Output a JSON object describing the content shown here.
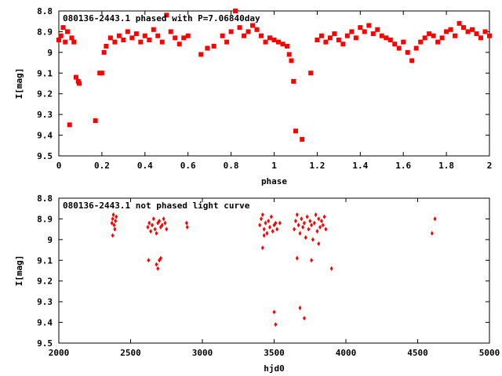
{
  "colors": {
    "points": "#ff0000",
    "axes": "#000000",
    "background": "#ffffff"
  },
  "chart_data": [
    {
      "type": "scatter",
      "title": "080136-2443.1 phased with P=7.06840day",
      "xlabel": "phase",
      "ylabel": "I[mag]",
      "xlim": [
        0,
        2
      ],
      "ylim": [
        8.8,
        9.5
      ],
      "y_inverted": true,
      "x_ticks": [
        0,
        0.2,
        0.4,
        0.6,
        0.8,
        1,
        1.2,
        1.4,
        1.6,
        1.8,
        2
      ],
      "x_tick_labels": [
        "0",
        "0.2",
        "0.4",
        "0.6",
        "0.8",
        "1",
        "1.2",
        "1.4",
        "1.6",
        "1.8",
        "2"
      ],
      "y_ticks": [
        8.8,
        8.9,
        9.0,
        9.1,
        9.2,
        9.3,
        9.4,
        9.5
      ],
      "y_tick_labels": [
        "8.8",
        "8.9",
        "9",
        "9.1",
        "9.2",
        "9.3",
        "9.4",
        "9.5"
      ],
      "grid": false,
      "marker": "square",
      "series": [
        {
          "x": [
            0.0,
            0.01,
            0.02,
            0.03,
            0.04,
            0.05,
            0.06,
            0.07,
            0.08,
            0.09,
            0.095,
            0.17,
            0.19,
            0.2,
            0.21,
            0.22,
            0.24,
            0.26,
            0.28,
            0.3,
            0.32,
            0.34,
            0.36,
            0.38,
            0.4,
            0.42,
            0.44,
            0.46,
            0.48,
            0.5,
            0.52,
            0.54,
            0.56,
            0.58,
            0.6,
            0.66,
            0.69,
            0.72,
            0.76,
            0.78,
            0.8,
            0.82,
            0.84,
            0.86,
            0.88,
            0.9,
            0.92,
            0.94,
            0.96,
            0.98,
            1.0,
            1.02,
            1.04,
            1.06,
            1.07,
            1.08,
            1.09,
            1.1,
            1.13,
            1.17,
            1.2,
            1.22,
            1.24,
            1.26,
            1.28,
            1.3,
            1.32,
            1.34,
            1.36,
            1.38,
            1.4,
            1.42,
            1.44,
            1.46,
            1.48,
            1.5,
            1.52,
            1.54,
            1.56,
            1.58,
            1.6,
            1.62,
            1.64,
            1.66,
            1.68,
            1.7,
            1.72,
            1.74,
            1.76,
            1.78,
            1.8,
            1.82,
            1.84,
            1.86,
            1.88,
            1.9,
            1.92,
            1.94,
            1.96,
            1.98,
            2.0
          ],
          "y": [
            8.94,
            8.92,
            8.88,
            8.95,
            8.9,
            9.35,
            8.93,
            8.95,
            9.12,
            9.14,
            9.15,
            9.33,
            9.1,
            9.1,
            9.0,
            8.97,
            8.93,
            8.95,
            8.92,
            8.94,
            8.9,
            8.93,
            8.91,
            8.95,
            8.92,
            8.94,
            8.89,
            8.92,
            8.95,
            8.82,
            8.9,
            8.93,
            8.96,
            8.93,
            8.92,
            9.01,
            8.98,
            8.97,
            8.92,
            8.95,
            8.9,
            8.8,
            8.88,
            8.92,
            8.9,
            8.87,
            8.89,
            8.92,
            8.95,
            8.93,
            8.94,
            8.95,
            8.96,
            8.97,
            9.01,
            9.04,
            9.14,
            9.38,
            9.42,
            9.1,
            8.94,
            8.92,
            8.95,
            8.93,
            8.91,
            8.94,
            8.96,
            8.92,
            8.9,
            8.93,
            8.88,
            8.9,
            8.87,
            8.91,
            8.89,
            8.92,
            8.93,
            8.94,
            8.96,
            8.98,
            8.95,
            9.0,
            9.04,
            8.98,
            8.95,
            8.93,
            8.91,
            8.92,
            8.95,
            8.93,
            8.9,
            8.89,
            8.92,
            8.86,
            8.88,
            8.9,
            8.89,
            8.91,
            8.93,
            8.9,
            8.92
          ]
        }
      ]
    },
    {
      "type": "scatter",
      "title": "080136-2443.1 not phased light curve",
      "xlabel": "hjd0",
      "ylabel": "I[mag]",
      "xlim": [
        2000,
        5000
      ],
      "ylim": [
        8.8,
        9.5
      ],
      "y_inverted": true,
      "x_ticks": [
        2000,
        2500,
        3000,
        3500,
        4000,
        4500,
        5000
      ],
      "x_tick_labels": [
        "2000",
        "2500",
        "3000",
        "3500",
        "4000",
        "4500",
        "5000"
      ],
      "y_ticks": [
        8.8,
        8.9,
        9.0,
        9.1,
        9.2,
        9.3,
        9.4,
        9.5
      ],
      "y_tick_labels": [
        "8.8",
        "8.9",
        "9",
        "9.1",
        "9.2",
        "9.3",
        "9.4",
        "9.5"
      ],
      "grid": false,
      "marker": "diamond",
      "series": [
        {
          "x": [
            2370,
            2375,
            2380,
            2385,
            2390,
            2395,
            2400,
            2375,
            2620,
            2630,
            2640,
            2650,
            2660,
            2670,
            2680,
            2690,
            2700,
            2710,
            2720,
            2730,
            2740,
            2750,
            2625,
            2680,
            2690,
            2700,
            2710,
            2890,
            2895,
            3400,
            3410,
            3420,
            3430,
            3440,
            3450,
            3460,
            3470,
            3480,
            3490,
            3500,
            3510,
            3420,
            3430,
            3500,
            3510,
            3520,
            3540,
            3640,
            3650,
            3660,
            3670,
            3680,
            3690,
            3700,
            3710,
            3720,
            3730,
            3740,
            3750,
            3760,
            3770,
            3780,
            3790,
            3800,
            3810,
            3820,
            3830,
            3840,
            3850,
            3860,
            3660,
            3680,
            3710,
            3760,
            3810,
            3900,
            4600,
            4620
          ],
          "y": [
            8.92,
            8.9,
            8.88,
            8.93,
            8.95,
            8.91,
            8.89,
            8.98,
            8.94,
            8.92,
            8.96,
            8.93,
            8.9,
            8.95,
            8.97,
            8.92,
            8.91,
            8.94,
            8.93,
            8.9,
            8.92,
            8.95,
            9.1,
            9.12,
            9.14,
            9.1,
            9.09,
            8.92,
            8.94,
            8.93,
            8.9,
            8.88,
            8.95,
            8.92,
            8.97,
            8.91,
            8.94,
            8.89,
            8.96,
            8.93,
            8.92,
            9.04,
            8.98,
            9.35,
            9.41,
            8.95,
            8.92,
            8.95,
            8.91,
            8.88,
            8.93,
            8.97,
            8.9,
            8.94,
            8.92,
            8.99,
            8.89,
            8.95,
            8.91,
            8.93,
            9.0,
            8.92,
            8.88,
            8.96,
            8.9,
            8.94,
            8.91,
            8.93,
            8.89,
            8.95,
            9.09,
            9.33,
            9.38,
            9.1,
            9.02,
            9.14,
            8.97,
            8.9
          ]
        }
      ]
    }
  ]
}
